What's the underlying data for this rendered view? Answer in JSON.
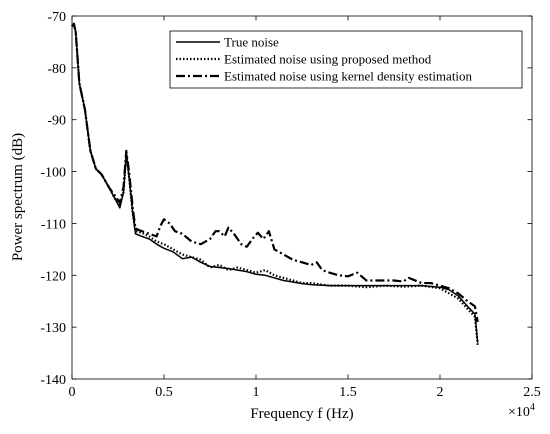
{
  "chart_data": {
    "type": "line",
    "title": "",
    "xlabel": "Frequency f (Hz)",
    "ylabel": "Power spectrum (dB)",
    "xlim": [
      0,
      25000
    ],
    "ylim": [
      -140,
      -70
    ],
    "x_exponent_label": "×10",
    "x_exponent_power": "4",
    "xticks": [
      {
        "value": 0,
        "label": "0"
      },
      {
        "value": 5000,
        "label": "0.5"
      },
      {
        "value": 10000,
        "label": "1"
      },
      {
        "value": 15000,
        "label": "1.5"
      },
      {
        "value": 20000,
        "label": "2"
      },
      {
        "value": 25000,
        "label": "2.5"
      }
    ],
    "yticks": [
      {
        "value": -70,
        "label": "-70"
      },
      {
        "value": -80,
        "label": "-80"
      },
      {
        "value": -90,
        "label": "-90"
      },
      {
        "value": -100,
        "label": "-100"
      },
      {
        "value": -110,
        "label": "-110"
      },
      {
        "value": -120,
        "label": "-120"
      },
      {
        "value": -130,
        "label": "-130"
      },
      {
        "value": -140,
        "label": "-140"
      }
    ],
    "grid": false,
    "legend_position": "top-right",
    "series": [
      {
        "name": "True noise",
        "style": "solid",
        "color": "#000000",
        "points": [
          [
            0,
            -72
          ],
          [
            100,
            -71.5
          ],
          [
            200,
            -73
          ],
          [
            400,
            -83
          ],
          [
            700,
            -88
          ],
          [
            1000,
            -96
          ],
          [
            1300,
            -99.5
          ],
          [
            1600,
            -100.5
          ],
          [
            2000,
            -103
          ],
          [
            2300,
            -105
          ],
          [
            2600,
            -107
          ],
          [
            2800,
            -104
          ],
          [
            2950,
            -96.5
          ],
          [
            3100,
            -101
          ],
          [
            3300,
            -108
          ],
          [
            3450,
            -112
          ],
          [
            3800,
            -112.5
          ],
          [
            4200,
            -113
          ],
          [
            4600,
            -114
          ],
          [
            5000,
            -114.8
          ],
          [
            5500,
            -115.5
          ],
          [
            6000,
            -116.8
          ],
          [
            6500,
            -116.5
          ],
          [
            7000,
            -117.5
          ],
          [
            7500,
            -118.3
          ],
          [
            8000,
            -118.5
          ],
          [
            8500,
            -118.7
          ],
          [
            9000,
            -119
          ],
          [
            9500,
            -119.3
          ],
          [
            10000,
            -119.8
          ],
          [
            10500,
            -120
          ],
          [
            11000,
            -120.5
          ],
          [
            11500,
            -121
          ],
          [
            12000,
            -121.3
          ],
          [
            12500,
            -121.6
          ],
          [
            13000,
            -121.8
          ],
          [
            14000,
            -122
          ],
          [
            15000,
            -122
          ],
          [
            16000,
            -122
          ],
          [
            17000,
            -122
          ],
          [
            18000,
            -122
          ],
          [
            19000,
            -122
          ],
          [
            20000,
            -122.3
          ],
          [
            20500,
            -122.8
          ],
          [
            21000,
            -124
          ],
          [
            21500,
            -126
          ],
          [
            21900,
            -127.5
          ],
          [
            22050,
            -133
          ]
        ]
      },
      {
        "name": "Estimated noise using proposed method",
        "style": "dotted",
        "color": "#000000",
        "points": [
          [
            0,
            -72
          ],
          [
            100,
            -71.5
          ],
          [
            200,
            -73
          ],
          [
            400,
            -83
          ],
          [
            700,
            -88
          ],
          [
            1000,
            -96
          ],
          [
            1300,
            -99.5
          ],
          [
            1600,
            -100.5
          ],
          [
            2000,
            -103
          ],
          [
            2300,
            -105
          ],
          [
            2600,
            -106.5
          ],
          [
            2800,
            -104
          ],
          [
            2950,
            -96.5
          ],
          [
            3100,
            -101
          ],
          [
            3300,
            -108
          ],
          [
            3450,
            -111.5
          ],
          [
            3800,
            -111.8
          ],
          [
            4200,
            -112.5
          ],
          [
            4600,
            -113.5
          ],
          [
            5000,
            -114
          ],
          [
            5500,
            -115
          ],
          [
            6000,
            -116
          ],
          [
            6500,
            -116.5
          ],
          [
            7000,
            -117
          ],
          [
            7500,
            -118.5
          ],
          [
            8000,
            -118
          ],
          [
            8500,
            -119
          ],
          [
            9000,
            -118.5
          ],
          [
            9500,
            -119
          ],
          [
            10000,
            -119.5
          ],
          [
            10500,
            -119
          ],
          [
            11000,
            -120
          ],
          [
            11500,
            -120.5
          ],
          [
            12000,
            -121
          ],
          [
            12500,
            -121.5
          ],
          [
            13000,
            -121.5
          ],
          [
            14000,
            -122
          ],
          [
            15000,
            -122
          ],
          [
            16000,
            -122.3
          ],
          [
            17000,
            -122
          ],
          [
            18000,
            -122.2
          ],
          [
            19000,
            -122
          ],
          [
            20000,
            -122.5
          ],
          [
            20500,
            -123.5
          ],
          [
            21000,
            -124.5
          ],
          [
            21500,
            -126.5
          ],
          [
            21900,
            -128
          ],
          [
            22050,
            -133.5
          ]
        ]
      },
      {
        "name": "Estimated noise using kernel density estimation",
        "style": "dashdot",
        "color": "#000000",
        "points": [
          [
            0,
            -72
          ],
          [
            100,
            -71.5
          ],
          [
            200,
            -73
          ],
          [
            400,
            -83
          ],
          [
            700,
            -88
          ],
          [
            1000,
            -96
          ],
          [
            1300,
            -99.5
          ],
          [
            1600,
            -100.5
          ],
          [
            2000,
            -103
          ],
          [
            2300,
            -104.5
          ],
          [
            2600,
            -106
          ],
          [
            2800,
            -103
          ],
          [
            2950,
            -96
          ],
          [
            3100,
            -100
          ],
          [
            3300,
            -107
          ],
          [
            3450,
            -111
          ],
          [
            3800,
            -111.5
          ],
          [
            4200,
            -112
          ],
          [
            4600,
            -112.5
          ],
          [
            4800,
            -110.5
          ],
          [
            5000,
            -109.2
          ],
          [
            5300,
            -110
          ],
          [
            5600,
            -111.5
          ],
          [
            6000,
            -112
          ],
          [
            6500,
            -113.5
          ],
          [
            7000,
            -114
          ],
          [
            7500,
            -113
          ],
          [
            7800,
            -111.5
          ],
          [
            8000,
            -111.5
          ],
          [
            8300,
            -112.5
          ],
          [
            8500,
            -110.8
          ],
          [
            8800,
            -112
          ],
          [
            9200,
            -114
          ],
          [
            9500,
            -114.5
          ],
          [
            9800,
            -113
          ],
          [
            10100,
            -111.8
          ],
          [
            10400,
            -113
          ],
          [
            10700,
            -111.5
          ],
          [
            11000,
            -115
          ],
          [
            11500,
            -116
          ],
          [
            12000,
            -117
          ],
          [
            12500,
            -117.5
          ],
          [
            13000,
            -118
          ],
          [
            13300,
            -117.5
          ],
          [
            13600,
            -119
          ],
          [
            14000,
            -119.5
          ],
          [
            14500,
            -120
          ],
          [
            15000,
            -120.2
          ],
          [
            15500,
            -119.5
          ],
          [
            16000,
            -121
          ],
          [
            17000,
            -121
          ],
          [
            17500,
            -121
          ],
          [
            18000,
            -121.2
          ],
          [
            18300,
            -120.5
          ],
          [
            19000,
            -121.5
          ],
          [
            19500,
            -121.5
          ],
          [
            20000,
            -122
          ],
          [
            20500,
            -122.5
          ],
          [
            21000,
            -123.5
          ],
          [
            21500,
            -125
          ],
          [
            21900,
            -126
          ],
          [
            22050,
            -129
          ]
        ]
      }
    ]
  }
}
